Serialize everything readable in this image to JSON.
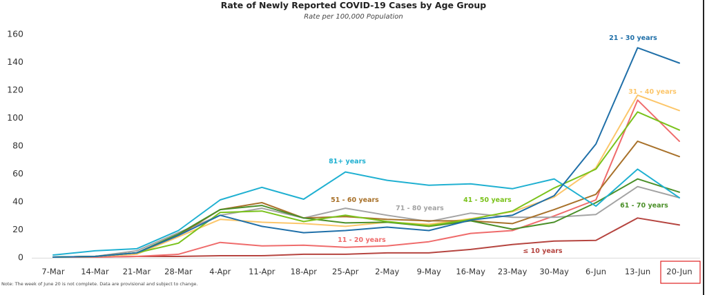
{
  "chart_data": {
    "type": "line",
    "title": "Rate of Newly Reported COVID-19 Cases by Age Group",
    "subtitle": "Rate per 100,000 Population",
    "xlabel": "",
    "ylabel": "",
    "ylim": [
      0,
      160
    ],
    "yticks": [
      0,
      20,
      40,
      60,
      80,
      100,
      120,
      140,
      160
    ],
    "grid": false,
    "legend": "inline-labels",
    "categories": [
      "7-Mar",
      "14-Mar",
      "21-Mar",
      "28-Mar",
      "4-Apr",
      "11-Apr",
      "18-Apr",
      "25-Apr",
      "2-May",
      "9-May",
      "16-May",
      "23-May",
      "30-May",
      "6-Jun",
      "13-Jun",
      "20-Jun"
    ],
    "highlighted_category": "20-Jun",
    "note": "Note: The week of June 20 is not complete. Data are provisional and subject to change.",
    "series": [
      {
        "name": "≤ 10 years",
        "color": "#b5443f",
        "label": "≤ 10 years",
        "values": [
          0,
          0,
          0.5,
          0.5,
          1,
          1,
          2,
          2,
          3,
          3,
          5.5,
          9,
          11.5,
          12,
          28,
          23
        ]
      },
      {
        "name": "11 - 20 years",
        "color": "#ef6b6b",
        "label": "11 - 20 years",
        "values": [
          0,
          0,
          0.5,
          2,
          10.5,
          8,
          8.5,
          7,
          8,
          11,
          17,
          19,
          29.5,
          41,
          112.5,
          83
        ]
      },
      {
        "name": "21 - 30 years",
        "color": "#1f6fa8",
        "label": "21 - 30 years",
        "values": [
          0,
          0.5,
          3,
          15.5,
          30,
          22,
          17.5,
          19,
          21.5,
          19,
          26.5,
          30,
          44,
          81,
          150,
          139
        ]
      },
      {
        "name": "31 - 40 years",
        "color": "#fcc66a",
        "label": "31 - 40 years",
        "values": [
          0,
          0.5,
          2,
          14.5,
          27,
          25,
          24,
          22,
          25,
          23.5,
          27.5,
          32.5,
          43,
          64,
          116,
          105
        ]
      },
      {
        "name": "41 - 50 years",
        "color": "#7ac21b",
        "label": "41 - 50 years",
        "values": [
          0,
          0.5,
          3,
          10,
          32,
          33,
          25.5,
          30,
          25.5,
          22.5,
          27,
          33,
          49.5,
          63,
          104,
          91
        ]
      },
      {
        "name": "51 - 60 years",
        "color": "#a8712a",
        "label": "51 - 60 years",
        "values": [
          0,
          0.5,
          3,
          15.5,
          34,
          39,
          28,
          29,
          27,
          26,
          26,
          24,
          34,
          45,
          83,
          72
        ]
      },
      {
        "name": "61 - 70 years",
        "color": "#4a8f28",
        "label": "61 - 70 years",
        "values": [
          0,
          0.5,
          3,
          16.5,
          34,
          37,
          28,
          24.5,
          25,
          22,
          26,
          20,
          25,
          39,
          56,
          46.5
        ]
      },
      {
        "name": "71 - 80 years",
        "color": "#a3a3a3",
        "label": "71 - 80 years",
        "values": [
          0,
          0.5,
          4.5,
          17.5,
          30,
          35,
          28,
          35,
          30,
          25.5,
          31.5,
          28.5,
          28.5,
          30.5,
          50.5,
          42.5
        ]
      },
      {
        "name": "81+ years",
        "color": "#1fb0d1",
        "label": "81+ years",
        "values": [
          1.5,
          4.5,
          6,
          19,
          41,
          50,
          41.5,
          61,
          55,
          51.5,
          52.5,
          49,
          56,
          36.5,
          63,
          42.5
        ]
      }
    ]
  }
}
